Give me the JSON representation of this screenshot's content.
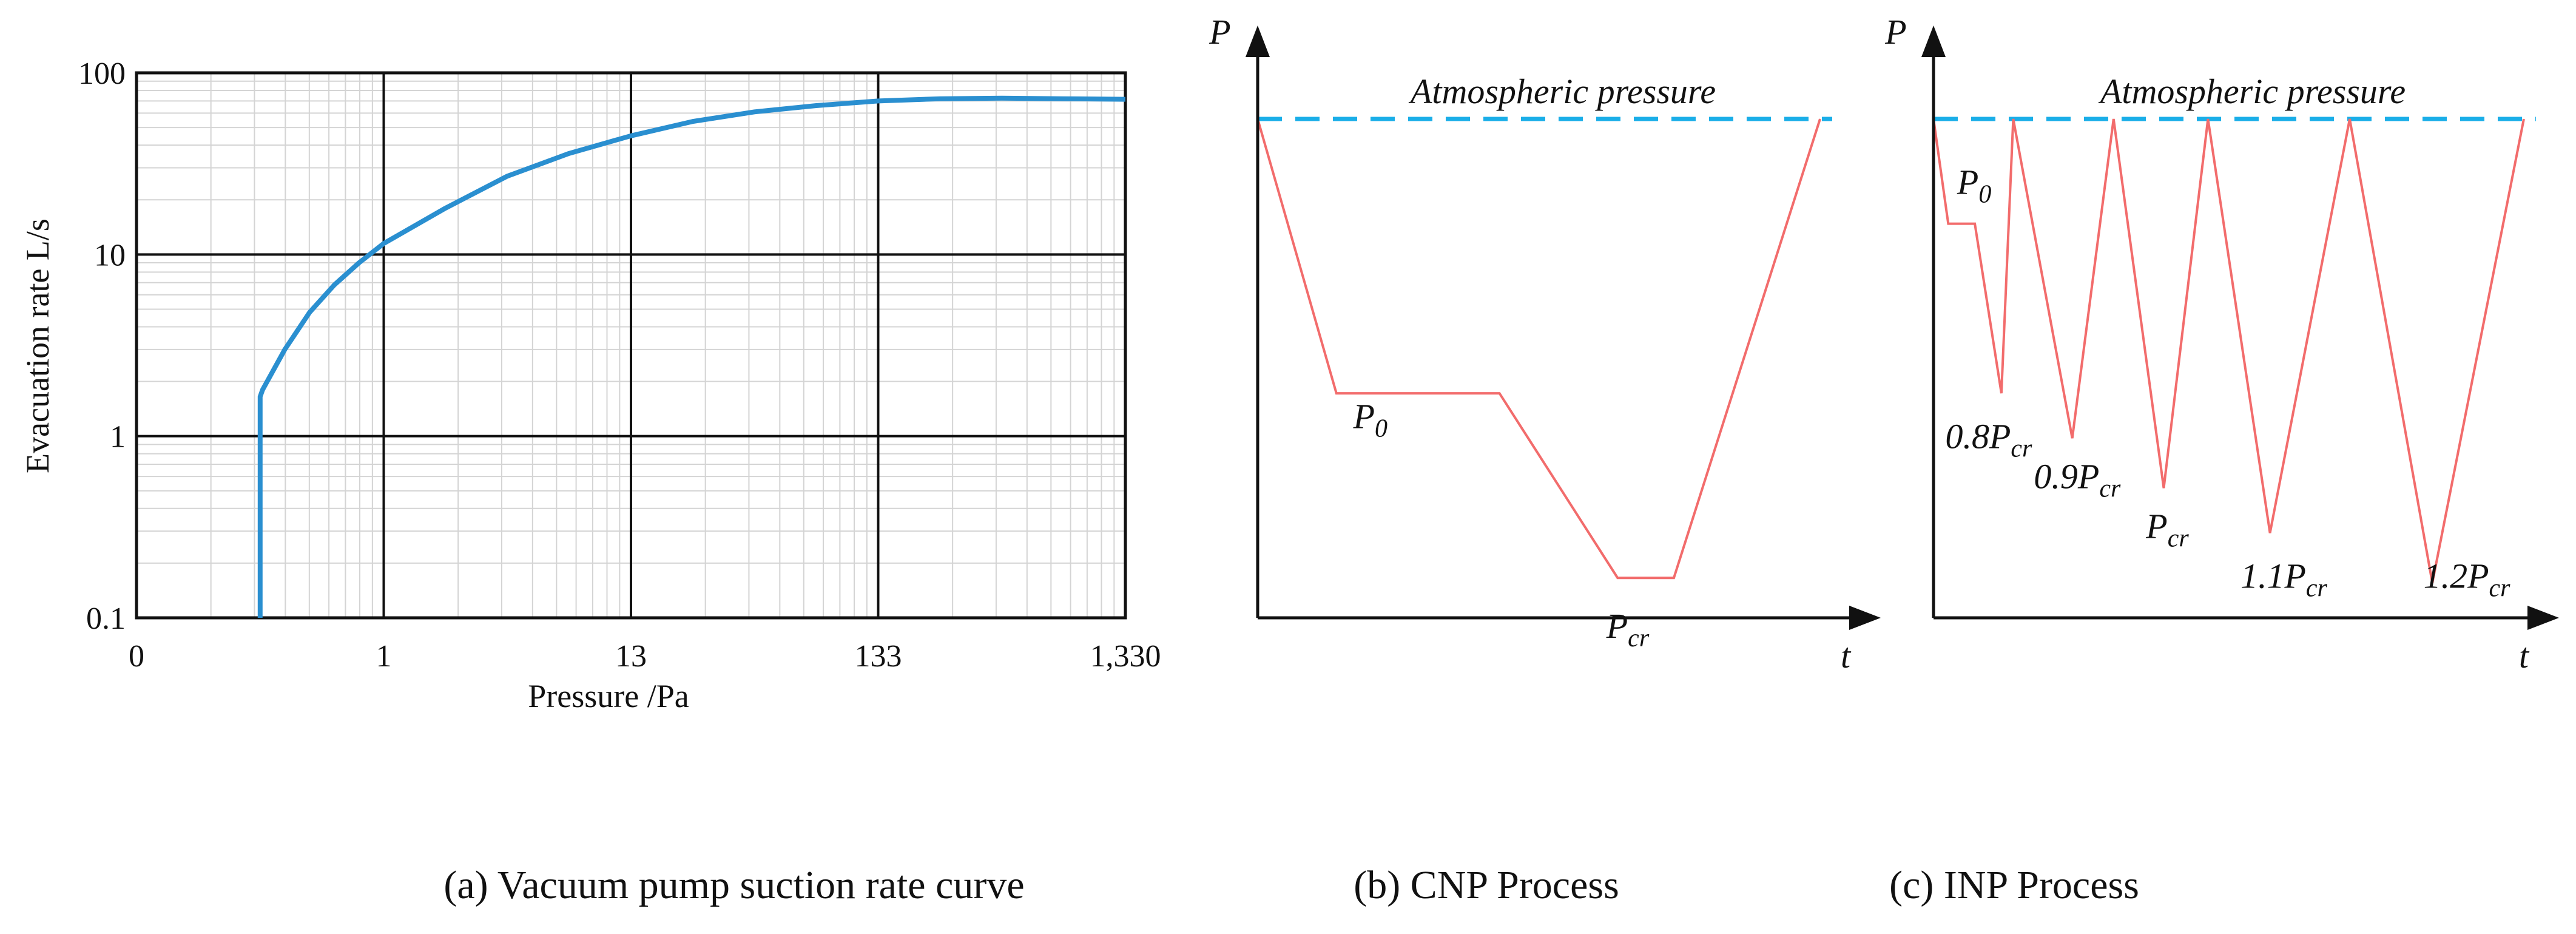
{
  "colors": {
    "curve": "#2a8fd0",
    "atm_line": "#1aaee8",
    "process": "#f26c6c",
    "axis": "#111111",
    "grid_major": "#111111",
    "grid_minor": "#d4d4d4"
  },
  "captions": {
    "a": "(a) Vacuum pump suction rate curve",
    "b": "(b) CNP Process",
    "c": "(c) INP Process"
  },
  "chart_data": [
    {
      "id": "a",
      "type": "line",
      "title": "",
      "xlabel": "Pressure /Pa",
      "ylabel": "Evacuation rate L/s",
      "x_scale": "log",
      "y_scale": "log",
      "x_ticks": [
        "0",
        "1",
        "13",
        "133",
        "1,330"
      ],
      "y_ticks": [
        "100",
        "10",
        "1",
        "0.1"
      ],
      "xlim_decades": [
        -1,
        3
      ],
      "ylim": [
        0.1,
        100
      ],
      "grid": true,
      "series": [
        {
          "name": "Evacuation rate",
          "x_decade": [
            -0.5,
            -0.5,
            -0.49,
            -0.4,
            -0.3,
            -0.2,
            -0.1,
            0.0,
            0.25,
            0.5,
            0.75,
            1.0,
            1.25,
            1.5,
            1.75,
            2.0,
            2.25,
            2.5,
            2.75,
            3.0
          ],
          "y": [
            0.1,
            1.65,
            1.8,
            3.0,
            4.8,
            6.8,
            9.0,
            11.5,
            18,
            27,
            36,
            45,
            54,
            61,
            66,
            70,
            72,
            72.5,
            72,
            71.5
          ]
        }
      ]
    },
    {
      "id": "b",
      "type": "line",
      "title": "",
      "xlabel": "t",
      "ylabel": "P",
      "reference_line": {
        "label": "Atmospheric pressure",
        "value": 1.0
      },
      "series": [
        {
          "name": "CNP",
          "t": [
            0,
            0.14,
            0.43,
            0.64,
            0.74,
            1.0
          ],
          "p": [
            1.0,
            0.45,
            0.45,
            0.08,
            0.08,
            1.0
          ]
        }
      ],
      "annotations": [
        {
          "text": "P",
          "sub": "0",
          "t": 0.17,
          "p": 0.38
        },
        {
          "text": "P",
          "sub": "cr",
          "t": 0.62,
          "p": -0.04
        }
      ]
    },
    {
      "id": "c",
      "type": "line",
      "title": "",
      "xlabel": "t",
      "ylabel": "P",
      "reference_line": {
        "label": "Atmospheric pressure",
        "value": 1.0
      },
      "series": [
        {
          "name": "INP",
          "t": [
            0,
            0.025,
            0.07,
            0.115,
            0.135,
            0.235,
            0.305,
            0.39,
            0.465,
            0.57,
            0.705,
            0.845,
            1.0
          ],
          "p": [
            1.0,
            0.79,
            0.79,
            0.45,
            1.0,
            0.36,
            1.0,
            0.26,
            1.0,
            0.17,
            1.0,
            0.07,
            1.0
          ]
        }
      ],
      "annotations": [
        {
          "text": "P",
          "sub": "0",
          "t": 0.04,
          "p": 0.85
        },
        {
          "text": "0.8P",
          "sub": "cr",
          "t": 0.02,
          "p": 0.34
        },
        {
          "text": "0.9P",
          "sub": "cr",
          "t": 0.17,
          "p": 0.26
        },
        {
          "text": "P",
          "sub": "cr",
          "t": 0.36,
          "p": 0.16
        },
        {
          "text": "1.1P",
          "sub": "cr",
          "t": 0.52,
          "p": 0.06
        },
        {
          "text": "1.2P",
          "sub": "cr",
          "t": 0.83,
          "p": 0.06
        }
      ]
    }
  ]
}
